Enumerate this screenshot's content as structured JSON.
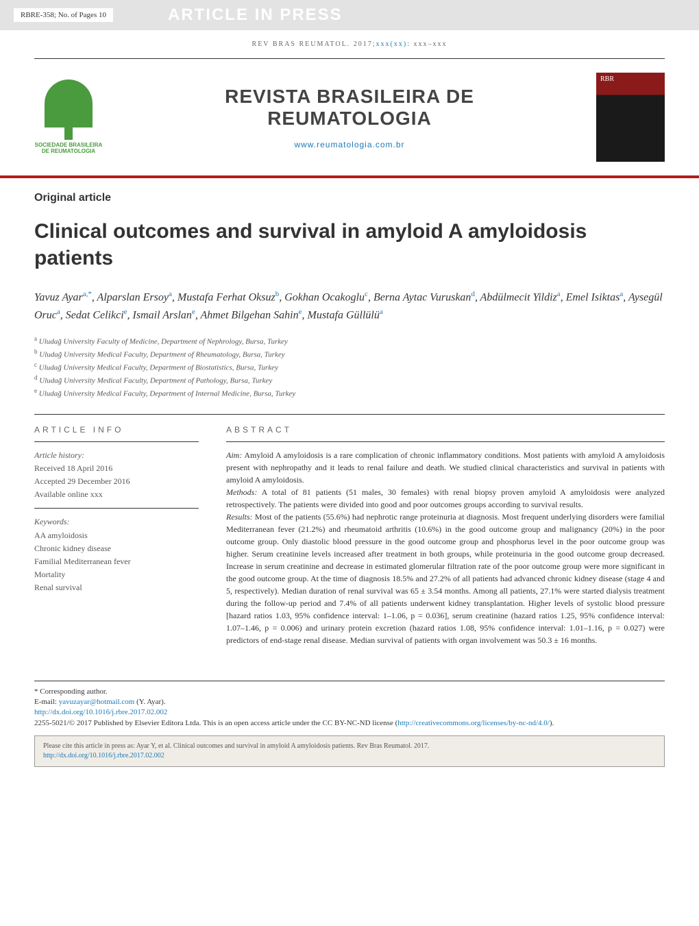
{
  "header": {
    "article_id": "RBRE-358;  No. of Pages 10",
    "press_banner": "ARTICLE IN PRESS",
    "journal_ref_prefix": "REV BRAS REUMATOL. 2017;",
    "journal_ref_issue": "xxx(xx)",
    "journal_ref_suffix": ": xxx–xxx"
  },
  "masthead": {
    "org_name": "SOCIEDADE BRASILEIRA DE REUMATOLOGIA",
    "journal_title_line1": "REVISTA BRASILEIRA DE",
    "journal_title_line2": "REUMATOLOGIA",
    "journal_url": "www.reumatologia.com.br"
  },
  "article": {
    "type": "Original article",
    "title": "Clinical outcomes and survival in amyloid A amyloidosis patients",
    "authors_html": "Yavuz Ayar<sup>a,*</sup>, Alparslan Ersoy<sup>a</sup>, Mustafa Ferhat Oksuz<sup>b</sup>, Gokhan Ocakoglu<sup>c</sup>, Berna Aytac Vuruskan<sup>d</sup>, Abdülmecit Yildiz<sup>a</sup>, Emel Isiktas<sup>a</sup>, Aysegül Oruc<sup>a</sup>, Sedat Celikci<sup>e</sup>, Ismail Arslan<sup>e</sup>, Ahmet Bilgehan Sahin<sup>e</sup>, Mustafa Güllülü<sup>a</sup>",
    "affiliations": [
      {
        "sup": "a",
        "text": "Uludağ University Faculty of Medicine, Department of Nephrology, Bursa, Turkey"
      },
      {
        "sup": "b",
        "text": "Uludağ University Medical Faculty, Department of Rheumatology, Bursa, Turkey"
      },
      {
        "sup": "c",
        "text": "Uludağ University Medical Faculty, Department of Biostatistics, Bursa, Turkey"
      },
      {
        "sup": "d",
        "text": "Uludağ University Medical Faculty, Department of Pathology, Bursa, Turkey"
      },
      {
        "sup": "e",
        "text": "Uludağ University Medical Faculty, Department of Internal Medicine, Bursa, Turkey"
      }
    ]
  },
  "article_info": {
    "heading": "ARTICLE INFO",
    "history_label": "Article history:",
    "received": "Received 18 April 2016",
    "accepted": "Accepted 29 December 2016",
    "available": "Available online xxx",
    "keywords_label": "Keywords:",
    "keywords": [
      "AA amyloidosis",
      "Chronic kidney disease",
      "Familial Mediterranean fever",
      "Mortality",
      "Renal survival"
    ]
  },
  "abstract": {
    "heading": "ABSTRACT",
    "sections": [
      {
        "label": "Aim:",
        "text": "Amyloid A amyloidosis is a rare complication of chronic inflammatory conditions. Most patients with amyloid A amyloidosis present with nephropathy and it leads to renal failure and death. We studied clinical characteristics and survival in patients with amyloid A amyloidosis."
      },
      {
        "label": "Methods:",
        "text": "A total of 81 patients (51 males, 30 females) with renal biopsy proven amyloid A amyloidosis were analyzed retrospectively. The patients were divided into good and poor outcomes groups according to survival results."
      },
      {
        "label": "Results:",
        "text": "Most of the patients (55.6%) had nephrotic range proteinuria at diagnosis. Most frequent underlying disorders were familial Mediterranean fever (21.2%) and rheumatoid arthritis (10.6%) in the good outcome group and malignancy (20%) in the poor outcome group. Only diastolic blood pressure in the good outcome group and phosphorus level in the poor outcome group was higher. Serum creatinine levels increased after treatment in both groups, while proteinuria in the good outcome group decreased. Increase in serum creatinine and decrease in estimated glomerular filtration rate of the poor outcome group were more significant in the good outcome group. At the time of diagnosis 18.5% and 27.2% of all patients had advanced chronic kidney disease (stage 4 and 5, respectively). Median duration of renal survival was 65 ± 3.54 months. Among all patients, 27.1% were started dialysis treatment during the follow-up period and 7.4% of all patients underwent kidney transplantation. Higher levels of systolic blood pressure [hazard ratios 1.03, 95% confidence interval: 1–1.06, p = 0.036], serum creatinine (hazard ratios 1.25, 95% confidence interval: 1.07–1.46, p = 0.006) and urinary protein excretion (hazard ratios 1.08, 95% confidence interval: 1.01–1.16, p = 0.027) were predictors of end-stage renal disease. Median survival of patients with organ involvement was 50.3 ± 16 months."
      }
    ]
  },
  "footer": {
    "corresponding": "* Corresponding author.",
    "email_label": "E-mail: ",
    "email": "yavuzayar@hotmail.com",
    "email_name": " (Y. Ayar).",
    "doi": "http://dx.doi.org/10.1016/j.rbre.2017.02.002",
    "license_text": "2255-5021/© 2017 Published by Elsevier Editora Ltda. This is an open access article under the CC BY-NC-ND license (",
    "license_url": "http://creativecommons.org/licenses/by-nc-nd/4.0/",
    "license_close": ")."
  },
  "citation": {
    "text": "Please cite this article in press as: Ayar Y, et al. Clinical outcomes and survival in amyloid A amyloidosis patients. Rev Bras Reumatol. 2017.",
    "url": "http://dx.doi.org/10.1016/j.rbre.2017.02.002"
  },
  "colors": {
    "accent_red": "#b31b1b",
    "link_blue": "#1a7ab8",
    "logo_green": "#4a9b3e",
    "header_gray": "#e3e3e3",
    "text_primary": "#333333"
  }
}
